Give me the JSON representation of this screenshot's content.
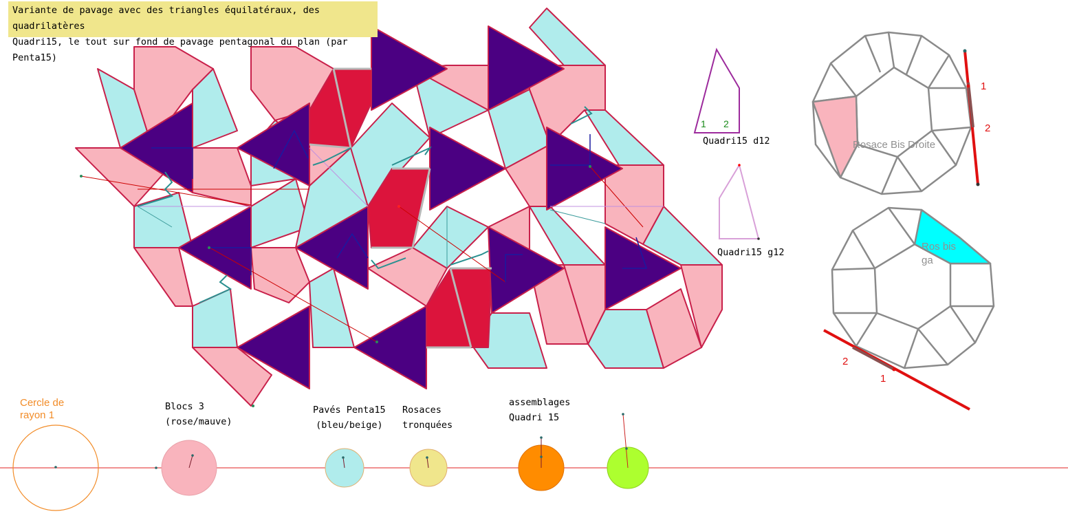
{
  "title": {
    "line1": "Variante de pavage avec des triangles équilatéraux, des quadrilatères",
    "line2": "Quadri15, le tout sur fond de pavage pentagonal du plan (par Penta15)"
  },
  "shapes": {
    "quadri_d12": "Quadri15 d12",
    "quadri_d12_num1": "1",
    "quadri_d12_num2": "2",
    "quadri_g12": "Quadri15 g12"
  },
  "rosaces": {
    "top_label": "Rosace Bis Droite",
    "top_num1": "1",
    "top_num2": "2",
    "bottom_label_line1": "Ros bis",
    "bottom_label_line2": "ga",
    "bottom_num1": "1",
    "bottom_num2": "2"
  },
  "sliders": {
    "cercle_line1": "Cercle de",
    "cercle_line2": "rayon 1",
    "blocs_line1": "Blocs 3",
    "blocs_line2": "(rose/mauve)",
    "paves_line1": "Pavés Penta15",
    "paves_line2": "(bleu/beige)",
    "rosaces_line1": "Rosaces",
    "rosaces_line2": "tronquées",
    "assemblages_line1": "assemblages",
    "assemblages_line2": "Quadri 15"
  },
  "colors": {
    "pink": "#f9b4bd",
    "cyan": "#b0ecec",
    "purple": "#4b0082",
    "crimson": "#dc143c",
    "outline": "#c8204a",
    "bright_cyan": "#00ffff",
    "orange": "#ff8c00",
    "lime": "#adff2f",
    "beige": "#f0e68c"
  }
}
